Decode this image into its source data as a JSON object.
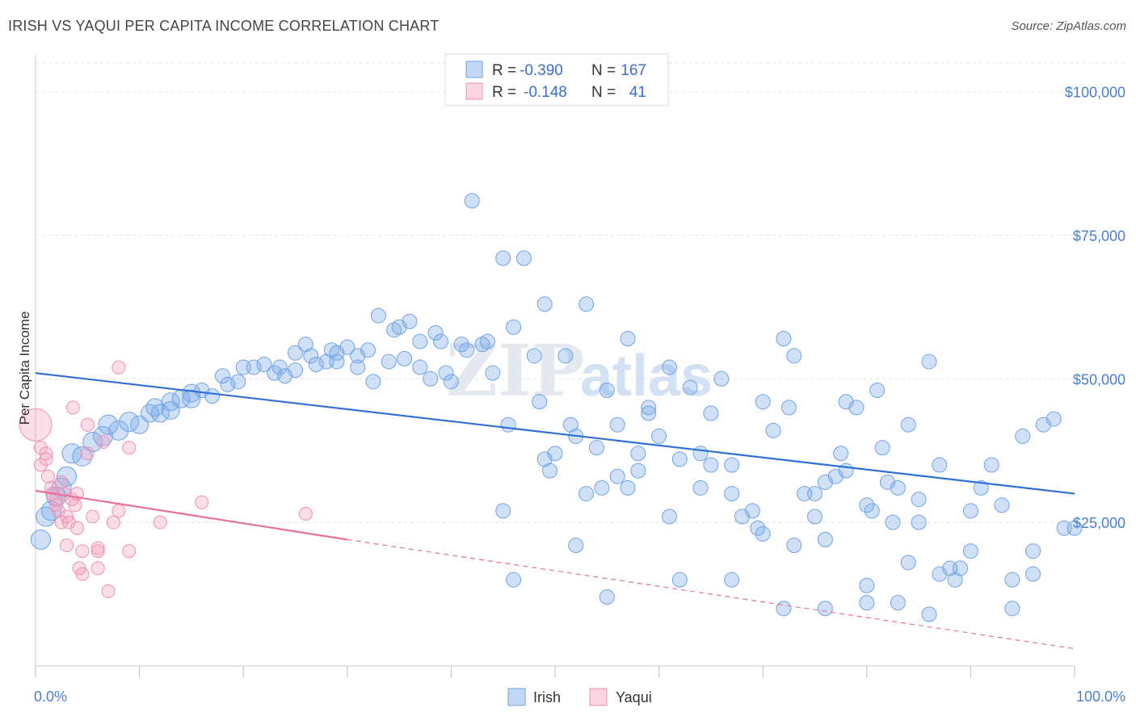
{
  "header": {
    "title": "IRISH VS YAQUI PER CAPITA INCOME CORRELATION CHART",
    "source": "Source: ZipAtlas.com"
  },
  "watermark": {
    "zip": "ZIP",
    "atlas": "atlas"
  },
  "legend_box": {
    "rows": [
      {
        "r_label": "R =",
        "r_value": "-0.390",
        "n_label": "N =",
        "n_value": "167",
        "color": "#6fa3e8"
      },
      {
        "r_label": "R =",
        "r_value": "-0.148",
        "n_label": "N =",
        "n_value": "41",
        "color": "#f08fb0"
      }
    ]
  },
  "chart_data": {
    "type": "scatter",
    "title": "IRISH VS YAQUI PER CAPITA INCOME CORRELATION CHART",
    "xlabel": "",
    "ylabel": "Per Capita Income",
    "xlim": [
      0,
      100
    ],
    "ylim": [
      0,
      105000
    ],
    "x_tick_labels": [
      "0.0%",
      "100.0%"
    ],
    "y_ticks": [
      {
        "value": 25000,
        "label": "$25,000"
      },
      {
        "value": 50000,
        "label": "$50,000"
      },
      {
        "value": 75000,
        "label": "$75,000"
      },
      {
        "value": 100000,
        "label": "$100,000"
      }
    ],
    "grid": "horizontal dashed",
    "legend_position": "bottom-center",
    "series": [
      {
        "name": "Irish",
        "color": "#6fa3e8",
        "fill": "rgba(120,168,232,0.35)",
        "trend": {
          "x": [
            0,
            100
          ],
          "y": [
            51000,
            30000
          ],
          "style": "solid"
        },
        "points": [
          [
            0.5,
            22000
          ],
          [
            1,
            26000
          ],
          [
            1.5,
            27000
          ],
          [
            2,
            29500
          ],
          [
            2.5,
            31000
          ],
          [
            3,
            33000
          ],
          [
            3.5,
            37000
          ],
          [
            4.5,
            36500
          ],
          [
            5.5,
            39000
          ],
          [
            6.5,
            40000
          ],
          [
            7,
            42000
          ],
          [
            8,
            41000
          ],
          [
            9,
            42500
          ],
          [
            10,
            42000
          ],
          [
            11,
            44000
          ],
          [
            11.5,
            45000
          ],
          [
            12,
            44000
          ],
          [
            13,
            46000
          ],
          [
            13,
            44500
          ],
          [
            14,
            46500
          ],
          [
            15,
            47500
          ],
          [
            15,
            46500
          ],
          [
            16,
            48000
          ],
          [
            17,
            47000
          ],
          [
            18,
            50500
          ],
          [
            18.5,
            49000
          ],
          [
            19.5,
            49500
          ],
          [
            20,
            52000
          ],
          [
            21,
            52000
          ],
          [
            22,
            52500
          ],
          [
            23,
            51000
          ],
          [
            23.5,
            52000
          ],
          [
            24,
            50500
          ],
          [
            25,
            51500
          ],
          [
            25,
            54500
          ],
          [
            26,
            56000
          ],
          [
            26.5,
            54000
          ],
          [
            27,
            52500
          ],
          [
            28,
            53000
          ],
          [
            28.5,
            55000
          ],
          [
            29,
            54500
          ],
          [
            29,
            53000
          ],
          [
            30,
            55500
          ],
          [
            31,
            54000
          ],
          [
            31,
            52000
          ],
          [
            32,
            55000
          ],
          [
            32.5,
            49500
          ],
          [
            33,
            61000
          ],
          [
            34,
            53000
          ],
          [
            34.5,
            58500
          ],
          [
            35,
            59000
          ],
          [
            35.5,
            53500
          ],
          [
            36,
            60000
          ],
          [
            37,
            52000
          ],
          [
            38,
            50000
          ],
          [
            38.5,
            58000
          ],
          [
            39,
            56500
          ],
          [
            39.5,
            51000
          ],
          [
            40,
            49500
          ],
          [
            41,
            56000
          ],
          [
            41.5,
            55000
          ],
          [
            42,
            81000
          ],
          [
            43,
            56000
          ],
          [
            43.5,
            56500
          ],
          [
            44,
            51000
          ],
          [
            45,
            71000
          ],
          [
            45.5,
            42000
          ],
          [
            46,
            59000
          ],
          [
            47,
            71000
          ],
          [
            48,
            54000
          ],
          [
            48.5,
            46000
          ],
          [
            49,
            63000
          ],
          [
            49,
            36000
          ],
          [
            49.5,
            34000
          ],
          [
            50,
            37000
          ],
          [
            51,
            54000
          ],
          [
            51.5,
            42000
          ],
          [
            52,
            40000
          ],
          [
            53,
            63000
          ],
          [
            53,
            30000
          ],
          [
            54,
            38000
          ],
          [
            54.5,
            31000
          ],
          [
            55,
            48000
          ],
          [
            56,
            42000
          ],
          [
            56,
            33000
          ],
          [
            57,
            57000
          ],
          [
            57,
            31000
          ],
          [
            58,
            37000
          ],
          [
            58,
            34000
          ],
          [
            59,
            45000
          ],
          [
            60,
            40000
          ],
          [
            61,
            52000
          ],
          [
            61,
            26000
          ],
          [
            62,
            36000
          ],
          [
            63,
            48500
          ],
          [
            64,
            37000
          ],
          [
            64,
            31000
          ],
          [
            65,
            35000
          ],
          [
            66,
            50000
          ],
          [
            67,
            30000
          ],
          [
            67,
            35000
          ],
          [
            68,
            26000
          ],
          [
            69,
            27000
          ],
          [
            69.5,
            24000
          ],
          [
            70,
            46000
          ],
          [
            70,
            23000
          ],
          [
            71,
            41000
          ],
          [
            72,
            57000
          ],
          [
            72.5,
            45000
          ],
          [
            73,
            54000
          ],
          [
            73,
            21000
          ],
          [
            74,
            30000
          ],
          [
            75,
            30000
          ],
          [
            75,
            26000
          ],
          [
            76,
            32000
          ],
          [
            76,
            22000
          ],
          [
            77,
            33000
          ],
          [
            77.5,
            37000
          ],
          [
            78,
            46000
          ],
          [
            78,
            34000
          ],
          [
            79,
            45000
          ],
          [
            80,
            28000
          ],
          [
            80.5,
            27000
          ],
          [
            81,
            48000
          ],
          [
            81.5,
            38000
          ],
          [
            82,
            32000
          ],
          [
            82.5,
            25000
          ],
          [
            83,
            31000
          ],
          [
            84,
            42000
          ],
          [
            85,
            29000
          ],
          [
            85,
            25000
          ],
          [
            86,
            53000
          ],
          [
            87,
            35000
          ],
          [
            88,
            17000
          ],
          [
            88.5,
            15000
          ],
          [
            89,
            17000
          ],
          [
            90,
            27000
          ],
          [
            91,
            31000
          ],
          [
            92,
            35000
          ],
          [
            93,
            28000
          ],
          [
            94,
            15000
          ],
          [
            95,
            40000
          ],
          [
            96,
            16000
          ],
          [
            97,
            42000
          ],
          [
            98,
            43000
          ],
          [
            99,
            24000
          ],
          [
            100,
            24000
          ],
          [
            52,
            21000
          ],
          [
            55,
            12000
          ],
          [
            62,
            15000
          ],
          [
            67,
            15000
          ],
          [
            76,
            10000
          ],
          [
            80,
            11000
          ],
          [
            83,
            11000
          ],
          [
            86,
            9000
          ],
          [
            90,
            20000
          ],
          [
            94,
            10000
          ],
          [
            37,
            56500
          ],
          [
            45,
            27000
          ],
          [
            46,
            15000
          ],
          [
            59,
            44000
          ],
          [
            65,
            44000
          ],
          [
            72,
            10000
          ],
          [
            80,
            14000
          ],
          [
            84,
            18000
          ],
          [
            87,
            16000
          ],
          [
            96,
            20000
          ]
        ]
      },
      {
        "name": "Yaqui",
        "color": "#f08fb0",
        "fill": "rgba(244,160,190,0.35)",
        "trend": {
          "x": [
            0,
            30,
            100
          ],
          "y": [
            30500,
            22000,
            3000
          ],
          "style": "solid-then-dashed"
        },
        "points": [
          [
            0,
            42000
          ],
          [
            0.5,
            38000
          ],
          [
            0.5,
            35000
          ],
          [
            1,
            37000
          ],
          [
            1,
            36000
          ],
          [
            1.2,
            33000
          ],
          [
            1.5,
            31000
          ],
          [
            1.6,
            30000
          ],
          [
            2,
            29000
          ],
          [
            2,
            28000
          ],
          [
            2.2,
            27000
          ],
          [
            2.5,
            32000
          ],
          [
            2.5,
            25000
          ],
          [
            2.8,
            30000
          ],
          [
            3,
            26000
          ],
          [
            3,
            21000
          ],
          [
            3.2,
            25000
          ],
          [
            3.5,
            29000
          ],
          [
            3.6,
            45000
          ],
          [
            3.8,
            28000
          ],
          [
            4,
            30000
          ],
          [
            4,
            24000
          ],
          [
            4.2,
            17000
          ],
          [
            4.5,
            20000
          ],
          [
            4.5,
            16000
          ],
          [
            5,
            42000
          ],
          [
            5,
            37000
          ],
          [
            5.5,
            26000
          ],
          [
            6,
            20000
          ],
          [
            6,
            20500
          ],
          [
            6,
            17000
          ],
          [
            6.5,
            39000
          ],
          [
            7,
            13000
          ],
          [
            7.5,
            25000
          ],
          [
            8,
            27000
          ],
          [
            8,
            52000
          ],
          [
            9,
            20000
          ],
          [
            9,
            38000
          ],
          [
            12,
            25000
          ],
          [
            16,
            28500
          ],
          [
            26,
            26500
          ]
        ]
      }
    ]
  },
  "bottom_legend": [
    {
      "label": "Irish",
      "color": "#6fa3e8"
    },
    {
      "label": "Yaqui",
      "color": "#f08fb0"
    }
  ]
}
